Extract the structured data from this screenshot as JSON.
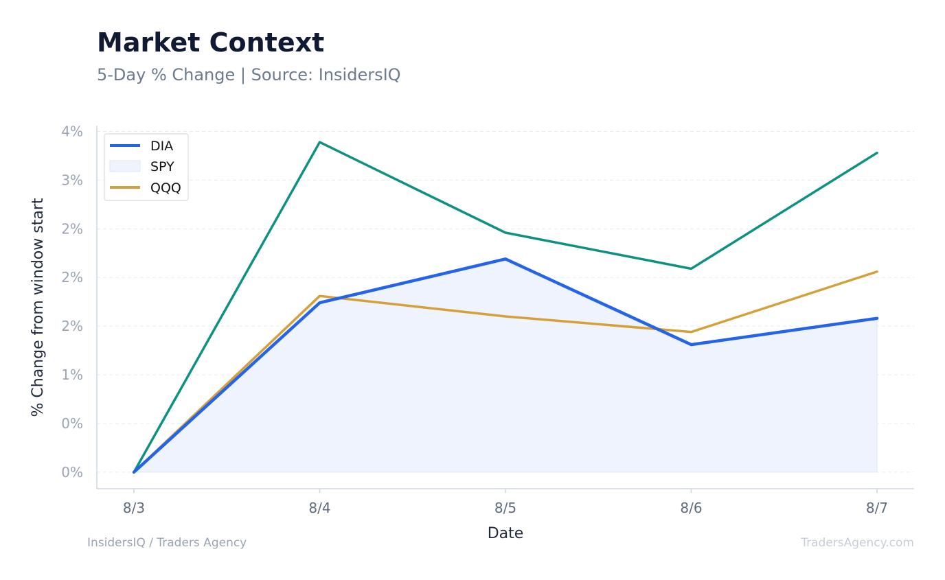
{
  "header": {
    "title": "Market Context",
    "subtitle": "5-Day % Change | Source: InsidersIQ"
  },
  "footer": {
    "left": "InsidersIQ / Traders Agency",
    "right": "TradersAgency.com"
  },
  "chart_data": {
    "type": "line",
    "title": "Market Context",
    "subtitle": "5-Day % Change | Source: InsidersIQ",
    "xlabel": "Date",
    "ylabel": "% Change from window start",
    "categories": [
      "8/3",
      "8/4",
      "8/5",
      "8/6",
      "8/7"
    ],
    "ylim": [
      -0.17,
      3.56
    ],
    "y_ticks": [
      0,
      0.5,
      1.0,
      1.5,
      2.0,
      2.5,
      3.0,
      3.5
    ],
    "y_tick_labels": [
      "0%",
      "0%",
      "1%",
      "2%",
      "2%",
      "2%",
      "3%",
      "4%"
    ],
    "grid": true,
    "legend_position": "top-left",
    "series": [
      {
        "name": "DIA",
        "values": [
          0,
          1.74,
          2.19,
          1.31,
          1.58
        ],
        "color": "#2563eb",
        "style": "line"
      },
      {
        "name": "SPY",
        "values": [
          0,
          3.39,
          2.46,
          2.09,
          3.28
        ],
        "color": "#0f9180",
        "style": "area"
      },
      {
        "name": "QQQ",
        "values": [
          0,
          1.81,
          1.6,
          1.44,
          2.06
        ],
        "color": "#d4a03a",
        "style": "line"
      }
    ],
    "area_fill_color": "#eef3fd"
  }
}
